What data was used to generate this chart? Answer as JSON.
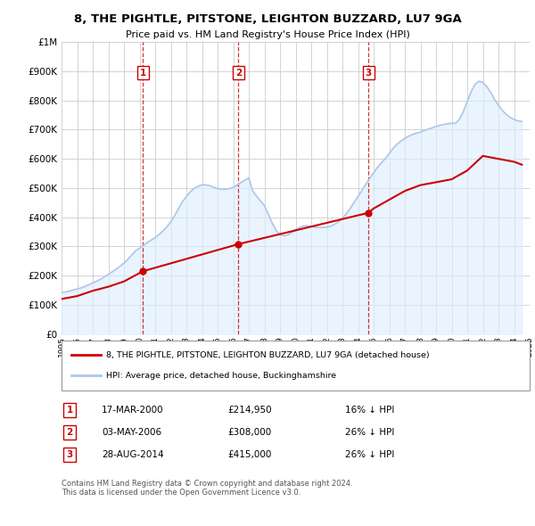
{
  "title": "8, THE PIGHTLE, PITSTONE, LEIGHTON BUZZARD, LU7 9GA",
  "subtitle": "Price paid vs. HM Land Registry's House Price Index (HPI)",
  "xlim": [
    1995,
    2025
  ],
  "ylim": [
    0,
    1000000
  ],
  "yticks": [
    0,
    100000,
    200000,
    300000,
    400000,
    500000,
    600000,
    700000,
    800000,
    900000,
    1000000
  ],
  "ytick_labels": [
    "£0",
    "£100K",
    "£200K",
    "£300K",
    "£400K",
    "£500K",
    "£600K",
    "£700K",
    "£800K",
    "£900K",
    "£1M"
  ],
  "hpi_color": "#aec6e8",
  "hpi_fill_color": "#ddeeff",
  "price_color": "#cc0000",
  "marker_color": "#cc0000",
  "vline_color": "#cc0000",
  "number_box_color": "#cc0000",
  "bg_color": "#ffffff",
  "grid_color": "#cccccc",
  "sale_points": [
    {
      "year": 2000.21,
      "price": 214950,
      "label": "1"
    },
    {
      "year": 2006.34,
      "price": 308000,
      "label": "2"
    },
    {
      "year": 2014.66,
      "price": 415000,
      "label": "3"
    }
  ],
  "legend_line1": "8, THE PIGHTLE, PITSTONE, LEIGHTON BUZZARD, LU7 9GA (detached house)",
  "legend_line2": "HPI: Average price, detached house, Buckinghamshire",
  "table_rows": [
    {
      "num": "1",
      "date": "17-MAR-2000",
      "price": "£214,950",
      "hpi": "16% ↓ HPI"
    },
    {
      "num": "2",
      "date": "03-MAY-2006",
      "price": "£308,000",
      "hpi": "26% ↓ HPI"
    },
    {
      "num": "3",
      "date": "28-AUG-2014",
      "price": "£415,000",
      "hpi": "26% ↓ HPI"
    }
  ],
  "footnote": "Contains HM Land Registry data © Crown copyright and database right 2024.\nThis data is licensed under the Open Government Licence v3.0.",
  "hpi_data_x": [
    1995.0,
    1995.25,
    1995.5,
    1995.75,
    1996.0,
    1996.25,
    1996.5,
    1996.75,
    1997.0,
    1997.25,
    1997.5,
    1997.75,
    1998.0,
    1998.25,
    1998.5,
    1998.75,
    1999.0,
    1999.25,
    1999.5,
    1999.75,
    2000.0,
    2000.25,
    2000.5,
    2000.75,
    2001.0,
    2001.25,
    2001.5,
    2001.75,
    2002.0,
    2002.25,
    2002.5,
    2002.75,
    2003.0,
    2003.25,
    2003.5,
    2003.75,
    2004.0,
    2004.25,
    2004.5,
    2004.75,
    2005.0,
    2005.25,
    2005.5,
    2005.75,
    2006.0,
    2006.25,
    2006.5,
    2006.75,
    2007.0,
    2007.25,
    2007.5,
    2007.75,
    2008.0,
    2008.25,
    2008.5,
    2008.75,
    2009.0,
    2009.25,
    2009.5,
    2009.75,
    2010.0,
    2010.25,
    2010.5,
    2010.75,
    2011.0,
    2011.25,
    2011.5,
    2011.75,
    2012.0,
    2012.25,
    2012.5,
    2012.75,
    2013.0,
    2013.25,
    2013.5,
    2013.75,
    2014.0,
    2014.25,
    2014.5,
    2014.75,
    2015.0,
    2015.25,
    2015.5,
    2015.75,
    2016.0,
    2016.25,
    2016.5,
    2016.75,
    2017.0,
    2017.25,
    2017.5,
    2017.75,
    2018.0,
    2018.25,
    2018.5,
    2018.75,
    2019.0,
    2019.25,
    2019.5,
    2019.75,
    2020.0,
    2020.25,
    2020.5,
    2020.75,
    2021.0,
    2021.25,
    2021.5,
    2021.75,
    2022.0,
    2022.25,
    2022.5,
    2022.75,
    2023.0,
    2023.25,
    2023.5,
    2023.75,
    2024.0,
    2024.25,
    2024.5
  ],
  "hpi_data_y": [
    142000,
    144000,
    147000,
    151000,
    154000,
    158000,
    163000,
    169000,
    175000,
    181000,
    188000,
    196000,
    204000,
    213000,
    222000,
    232000,
    243000,
    256000,
    271000,
    285000,
    294000,
    304000,
    314000,
    322000,
    330000,
    341000,
    353000,
    367000,
    384000,
    406000,
    430000,
    453000,
    471000,
    487000,
    499000,
    506000,
    511000,
    511000,
    508000,
    503000,
    498000,
    496000,
    496000,
    498000,
    502000,
    510000,
    519000,
    527000,
    535000,
    490000,
    472000,
    456000,
    440000,
    410000,
    380000,
    355000,
    340000,
    336000,
    340000,
    348000,
    358000,
    365000,
    370000,
    371000,
    368000,
    366000,
    365000,
    365000,
    366000,
    370000,
    376000,
    384000,
    396000,
    412000,
    430000,
    451000,
    471000,
    492000,
    513000,
    533000,
    553000,
    571000,
    587000,
    601000,
    618000,
    636000,
    650000,
    661000,
    670000,
    678000,
    684000,
    688000,
    692000,
    697000,
    702000,
    706000,
    711000,
    715000,
    718000,
    720000,
    722000,
    722000,
    736000,
    762000,
    796000,
    830000,
    856000,
    866000,
    862000,
    848000,
    828000,
    804000,
    784000,
    766000,
    752000,
    742000,
    735000,
    730000,
    728000
  ],
  "price_data_x": [
    1995.0,
    1996.0,
    1997.0,
    1998.0,
    1999.0,
    2000.21,
    2006.34,
    2014.66,
    2015.0,
    2016.0,
    2017.0,
    2018.0,
    2019.0,
    2020.0,
    2021.0,
    2022.0,
    2023.0,
    2024.0,
    2024.5
  ],
  "price_data_y": [
    120000,
    130000,
    148000,
    162000,
    180000,
    214950,
    308000,
    415000,
    430000,
    460000,
    490000,
    510000,
    520000,
    530000,
    560000,
    610000,
    600000,
    590000,
    580000
  ]
}
